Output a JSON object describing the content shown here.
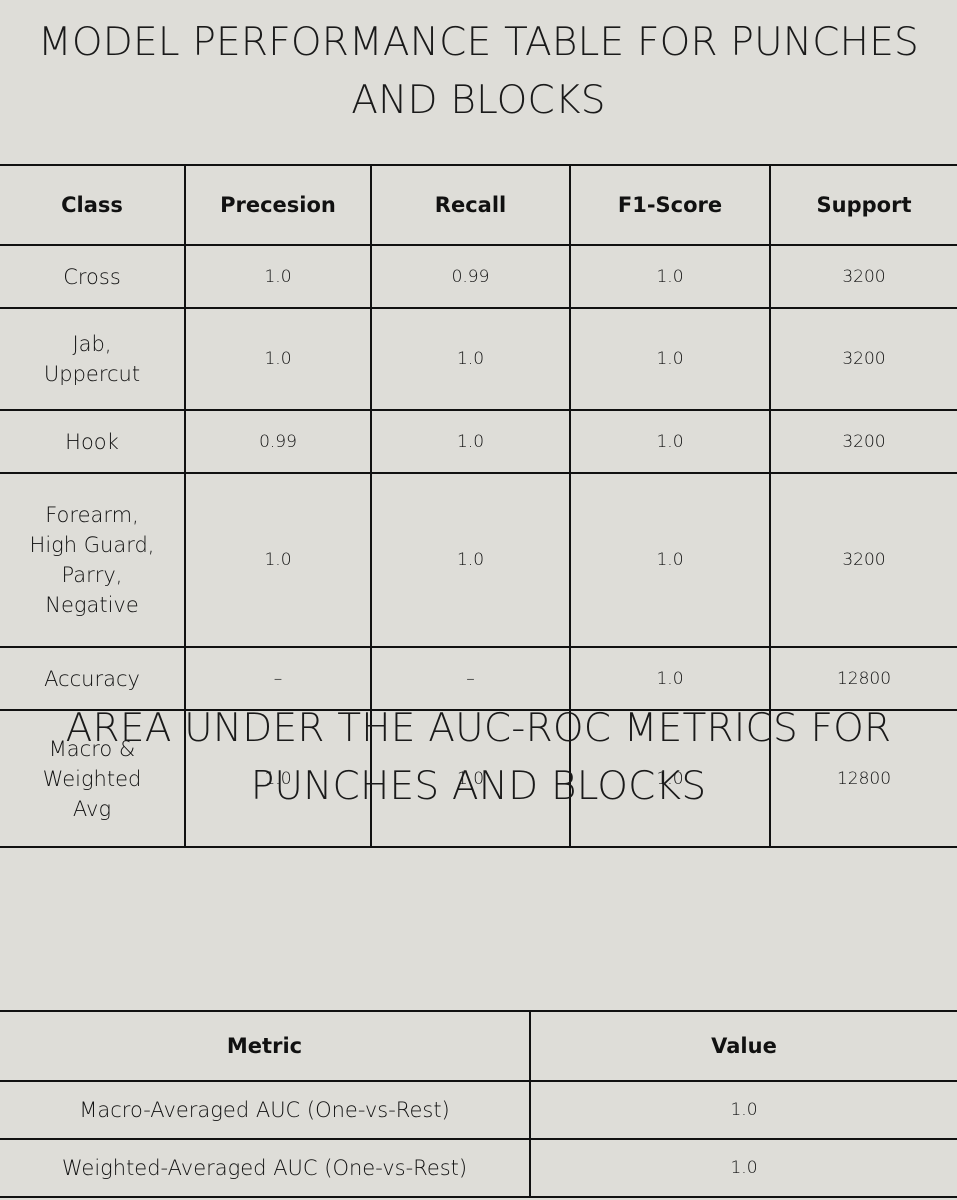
{
  "section1": {
    "title_line1": "MODEL PERFORMANCE TABLE FOR PUNCHES",
    "title_line2": "AND BLOCKS",
    "headers": [
      "Class",
      "Precesion",
      "Recall",
      "F1-Score",
      "Support"
    ],
    "rows": [
      {
        "class_lines": [
          "Cross"
        ],
        "precision": "1.0",
        "recall": "0.99",
        "f1": "1.0",
        "support": "3200"
      },
      {
        "class_lines": [
          "Jab,",
          "Uppercut"
        ],
        "precision": "1.0",
        "recall": "1.0",
        "f1": "1.0",
        "support": "3200"
      },
      {
        "class_lines": [
          "Hook"
        ],
        "precision": "0.99",
        "recall": "1.0",
        "f1": "1.0",
        "support": "3200"
      },
      {
        "class_lines": [
          "Forearm,",
          "High Guard,",
          "Parry,",
          "Negative"
        ],
        "precision": "1.0",
        "recall": "1.0",
        "f1": "1.0",
        "support": "3200"
      },
      {
        "class_lines": [
          "Accuracy"
        ],
        "precision": "–",
        "recall": "–",
        "f1": "1.0",
        "support": "12800"
      },
      {
        "class_lines": [
          "Macro &",
          "Weighted",
          "Avg"
        ],
        "precision": "1.0",
        "recall": "1.0",
        "f1": "1.0",
        "support": "12800"
      }
    ]
  },
  "section2": {
    "title_line1": "AREA UNDER THE AUC-ROC METRICS FOR",
    "title_line2": "PUNCHES AND BLOCKS",
    "headers": [
      "Metric",
      "Value"
    ],
    "rows": [
      {
        "metric": "Macro-Averaged AUC (One-vs-Rest)",
        "value": "1.0"
      },
      {
        "metric": "Weighted-Averaged AUC (One-vs-Rest)",
        "value": "1.0"
      }
    ]
  }
}
